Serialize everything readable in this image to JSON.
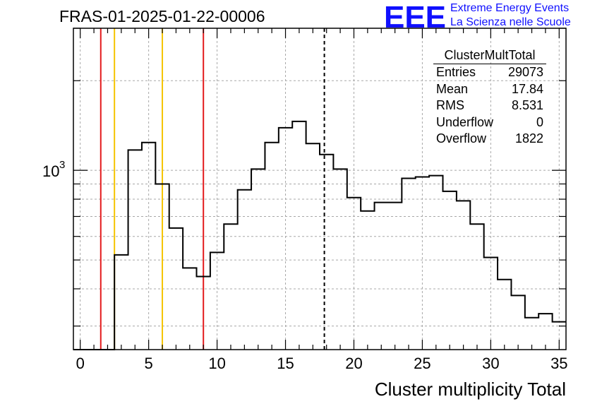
{
  "header": {
    "title": "FRAS-01-2025-01-22-00006",
    "logo_text": "EEE",
    "logo_line1": "Extreme Energy Events",
    "logo_line2": "La Scienza nelle Scuole",
    "logo_color": "#1010ff"
  },
  "stats": {
    "title": "ClusterMultTotal",
    "rows": [
      {
        "label": "Entries",
        "value": "29073"
      },
      {
        "label": "Mean",
        "value": "17.84"
      },
      {
        "label": "RMS",
        "value": "8.531"
      },
      {
        "label": "Underflow",
        "value": "0"
      },
      {
        "label": "Overflow",
        "value": "1822"
      }
    ]
  },
  "chart_data": {
    "type": "histogram",
    "title": "FRAS-01-2025-01-22-00006",
    "xlabel": "Cluster multiplicity Total",
    "ylabel": "",
    "xlim": [
      -0.5,
      35.5
    ],
    "ylim": [
      250,
      3000
    ],
    "log_y": true,
    "grid": true,
    "bin_width": 1,
    "bin_low_edges": [
      -0.5,
      0.5,
      1.5,
      2.5,
      3.5,
      4.5,
      5.5,
      6.5,
      7.5,
      8.5,
      9.5,
      10.5,
      11.5,
      12.5,
      13.5,
      14.5,
      15.5,
      16.5,
      17.5,
      18.5,
      19.5,
      20.5,
      21.5,
      22.5,
      23.5,
      24.5,
      25.5,
      26.5,
      27.5,
      28.5,
      29.5,
      30.5,
      31.5,
      32.5,
      33.5,
      34.5
    ],
    "values": [
      0,
      0,
      0,
      520,
      1170,
      1240,
      900,
      640,
      470,
      440,
      530,
      660,
      860,
      1010,
      1240,
      1390,
      1460,
      1230,
      1130,
      1010,
      810,
      730,
      780,
      780,
      940,
      950,
      960,
      850,
      790,
      660,
      510,
      430,
      380,
      320,
      330,
      310
    ],
    "x_ticks": [
      "0",
      "5",
      "10",
      "15",
      "20",
      "25",
      "30",
      "35"
    ],
    "x_tick_values": [
      0,
      5,
      10,
      15,
      20,
      25,
      30,
      35
    ],
    "y_tick_labels": [
      {
        "base": "10",
        "exp": "3",
        "value": 1000
      }
    ],
    "cut_lines": [
      {
        "x": 1.5,
        "color": "#e31a1c",
        "style": "solid"
      },
      {
        "x": 2.5,
        "color": "#f5c400",
        "style": "solid"
      },
      {
        "x": 6.0,
        "color": "#f5c400",
        "style": "solid"
      },
      {
        "x": 9.0,
        "color": "#e31a1c",
        "style": "solid"
      },
      {
        "x": 17.84,
        "color": "#000000",
        "style": "dashed"
      }
    ],
    "line_color": "#000000"
  }
}
